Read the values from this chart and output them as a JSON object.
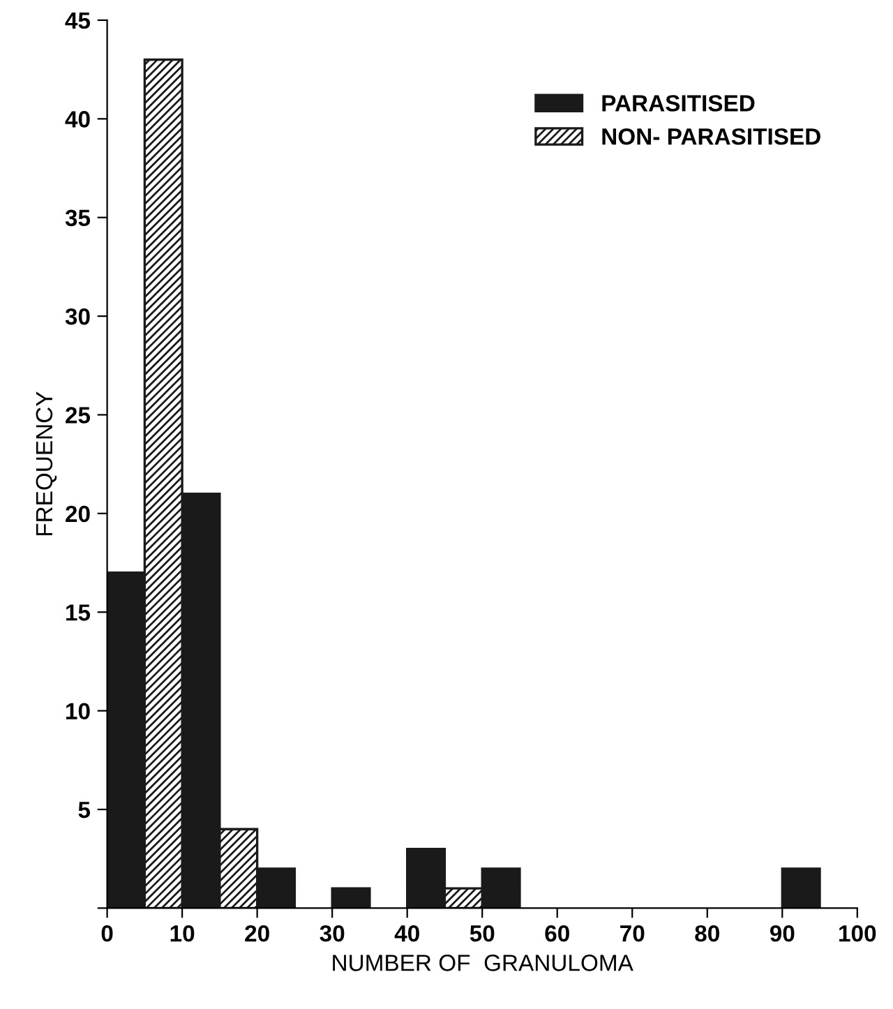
{
  "chart_data": {
    "type": "bar",
    "xlabel": "NUMBER OF  GRANULOMA",
    "ylabel": "FREQUENCY",
    "xlim": [
      0,
      100
    ],
    "xticks": [
      0,
      10,
      20,
      30,
      40,
      50,
      60,
      70,
      80,
      90,
      100
    ],
    "ylim": [
      0,
      45
    ],
    "yticks": [
      {
        "value": 0,
        "label": null
      },
      5,
      10,
      15,
      20,
      25,
      30,
      35,
      40,
      45
    ],
    "legend": "top right",
    "grid": false,
    "series": [
      {
        "name": "PARASITISED",
        "color": "#1a1a1a",
        "x": [
          2.5,
          12.5,
          22.5,
          32.5,
          42.5,
          52.5,
          92.5
        ],
        "values": [
          17,
          21,
          2,
          1,
          3,
          2,
          2
        ]
      },
      {
        "name": "NON- PARASITISED",
        "color": "#1a1a1a",
        "x": [
          7.5,
          17.5,
          47.5
        ],
        "values": [
          43,
          4,
          1
        ]
      }
    ]
  }
}
